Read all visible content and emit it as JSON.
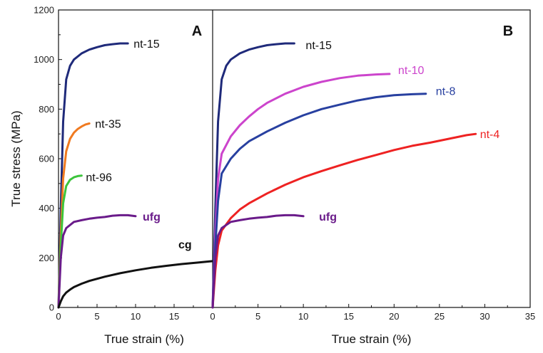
{
  "chart_data": [
    {
      "type": "line",
      "panel_label": "A",
      "xlabel": "True strain (%)",
      "ylabel": "True stress (MPa)",
      "xlim": [
        0,
        20
      ],
      "ylim": [
        0,
        1200
      ],
      "xticks": [
        0,
        5,
        10,
        15
      ],
      "yticks": [
        0,
        200,
        400,
        600,
        800,
        1000,
        1200
      ],
      "series": [
        {
          "name": "nt-15",
          "color": "#1f2a7a",
          "label_bold": false,
          "x": [
            0,
            0.3,
            0.6,
            1.0,
            1.5,
            2.0,
            3.0,
            4.0,
            5.0,
            6.0,
            7.0,
            8.0,
            9.0
          ],
          "y": [
            0,
            400,
            750,
            920,
            975,
            1000,
            1025,
            1040,
            1050,
            1058,
            1062,
            1065,
            1065
          ]
        },
        {
          "name": "nt-35",
          "color": "#f07a20",
          "label_bold": false,
          "x": [
            0,
            0.3,
            0.6,
            1.0,
            1.5,
            2.0,
            2.5,
            3.0,
            3.5,
            4.0
          ],
          "y": [
            0,
            300,
            520,
            630,
            680,
            705,
            720,
            730,
            738,
            742
          ]
        },
        {
          "name": "nt-96",
          "color": "#3cc43c",
          "label_bold": false,
          "x": [
            0,
            0.3,
            0.6,
            1.0,
            1.5,
            2.0,
            2.5,
            3.0
          ],
          "y": [
            0,
            250,
            420,
            490,
            515,
            525,
            530,
            532
          ]
        },
        {
          "name": "ufg",
          "color": "#6a1b8a",
          "label_bold": true,
          "x": [
            0,
            0.3,
            0.6,
            1.0,
            2.0,
            3.0,
            4.0,
            5.0,
            6.0,
            7.0,
            8.0,
            9.0,
            10.0
          ],
          "y": [
            0,
            200,
            290,
            320,
            345,
            352,
            358,
            362,
            365,
            370,
            372,
            372,
            368
          ]
        },
        {
          "name": "cg",
          "color": "#111111",
          "label_bold": true,
          "x": [
            0,
            0.3,
            0.6,
            1.0,
            1.5,
            2.0,
            3.0,
            4.0,
            6.0,
            8.0,
            10.0,
            12.0,
            14.0,
            16.0,
            18.0,
            20.0
          ],
          "y": [
            0,
            25,
            45,
            60,
            72,
            82,
            96,
            107,
            124,
            138,
            150,
            160,
            168,
            175,
            181,
            187
          ]
        }
      ]
    },
    {
      "type": "line",
      "panel_label": "B",
      "xlabel": "True strain (%)",
      "xlim": [
        0,
        35
      ],
      "ylim": [
        0,
        1200
      ],
      "xticks": [
        0,
        5,
        10,
        15,
        20,
        25,
        30,
        35
      ],
      "series": [
        {
          "name": "nt-15",
          "color": "#1f2a7a",
          "label_bold": false,
          "x": [
            0,
            0.3,
            0.6,
            1.0,
            1.5,
            2.0,
            3.0,
            4.0,
            5.0,
            6.0,
            7.0,
            8.0,
            9.0
          ],
          "y": [
            0,
            400,
            750,
            920,
            975,
            1000,
            1025,
            1040,
            1050,
            1058,
            1062,
            1065,
            1065
          ]
        },
        {
          "name": "nt-10",
          "color": "#cc44cc",
          "label_bold": false,
          "x": [
            0,
            0.3,
            0.6,
            1.0,
            2.0,
            3.0,
            4.0,
            5.0,
            6.0,
            8.0,
            10.0,
            12.0,
            14.0,
            16.0,
            18.0,
            19.5
          ],
          "y": [
            0,
            300,
            520,
            620,
            690,
            735,
            770,
            800,
            825,
            862,
            890,
            910,
            925,
            935,
            940,
            942
          ]
        },
        {
          "name": "nt-8",
          "color": "#2840a0",
          "label_bold": false,
          "x": [
            0,
            0.3,
            0.6,
            1.0,
            2.0,
            3.0,
            4.0,
            6.0,
            8.0,
            10.0,
            12.0,
            14.0,
            16.0,
            18.0,
            20.0,
            22.0,
            23.5
          ],
          "y": [
            0,
            250,
            430,
            540,
            600,
            640,
            670,
            710,
            745,
            775,
            800,
            818,
            835,
            848,
            856,
            860,
            862
          ]
        },
        {
          "name": "nt-4",
          "color": "#ee2222",
          "label_bold": false,
          "x": [
            0,
            0.3,
            0.6,
            1.0,
            2.0,
            3.0,
            4.0,
            6.0,
            8.0,
            10.0,
            12.0,
            14.0,
            16.0,
            18.0,
            20.0,
            22.0,
            24.0,
            26.0,
            28.0,
            29.0
          ],
          "y": [
            0,
            150,
            250,
            310,
            360,
            395,
            420,
            460,
            495,
            525,
            550,
            573,
            595,
            615,
            635,
            652,
            665,
            680,
            695,
            700
          ]
        },
        {
          "name": "ufg",
          "color": "#6a1b8a",
          "label_bold": true,
          "x": [
            0,
            0.3,
            0.6,
            1.0,
            2.0,
            3.0,
            4.0,
            5.0,
            6.0,
            7.0,
            8.0,
            9.0,
            10.0
          ],
          "y": [
            0,
            200,
            290,
            320,
            345,
            352,
            358,
            362,
            365,
            370,
            372,
            372,
            368
          ]
        }
      ]
    }
  ]
}
